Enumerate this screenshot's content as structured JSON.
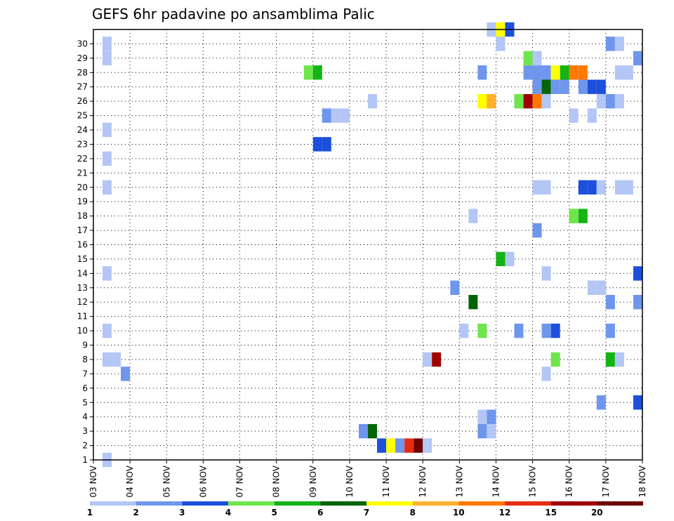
{
  "chart_data": {
    "type": "heatmap",
    "title": "GEFS 6hr padavine po ansamblima Palic",
    "x_ticks": [
      "03 NOV",
      "04 NOV",
      "05 NOV",
      "06 NOV",
      "07 NOV",
      "08 NOV",
      "09 NOV",
      "10 NOV",
      "11 NOV",
      "12 NOV",
      "13 NOV",
      "14 NOV",
      "15 NOV",
      "16 NOV",
      "17 NOV",
      "18 NOV"
    ],
    "y_ticks": [
      "1",
      "2",
      "3",
      "4",
      "5",
      "6",
      "7",
      "8",
      "9",
      "10",
      "11",
      "12",
      "13",
      "14",
      "15",
      "16",
      "17",
      "18",
      "19",
      "20",
      "21",
      "22",
      "23",
      "24",
      "25",
      "26",
      "27",
      "28",
      "29",
      "30"
    ],
    "ylim": [
      0,
      30
    ],
    "grid": true,
    "color_scale": {
      "colors": [
        "#b3c6f5",
        "#6e96ec",
        "#1c4fdc",
        "#6ee64b",
        "#14b414",
        "#056405",
        "#ffff00",
        "#ffb02e",
        "#ff7800",
        "#e62d14",
        "#a00000",
        "#6e0000"
      ],
      "labels": [
        "1",
        "2",
        "3",
        "4",
        "5",
        "6",
        "7",
        "8",
        "10",
        "12",
        "15",
        "20"
      ]
    },
    "cells": [
      [
        0.25,
        0,
        1
      ],
      [
        0.25,
        7,
        1
      ],
      [
        0.5,
        7,
        1
      ],
      [
        0.75,
        6,
        2
      ],
      [
        0.25,
        9,
        1
      ],
      [
        0.25,
        13,
        1
      ],
      [
        0.25,
        19,
        1
      ],
      [
        0.25,
        21,
        1
      ],
      [
        0.25,
        23,
        1
      ],
      [
        0.25,
        28,
        1
      ],
      [
        0.25,
        29,
        1
      ],
      [
        5.75,
        27,
        4
      ],
      [
        6.0,
        27,
        5
      ],
      [
        6.0,
        22,
        3
      ],
      [
        6.25,
        22,
        3
      ],
      [
        6.25,
        24,
        2
      ],
      [
        6.5,
        24,
        1
      ],
      [
        6.75,
        24,
        1
      ],
      [
        7.5,
        25,
        1
      ],
      [
        7.25,
        2,
        2
      ],
      [
        7.5,
        2,
        6
      ],
      [
        7.75,
        1,
        3
      ],
      [
        8.0,
        1,
        7
      ],
      [
        8.25,
        1,
        2
      ],
      [
        8.5,
        1,
        10
      ],
      [
        8.75,
        1,
        12
      ],
      [
        9.0,
        1,
        1
      ],
      [
        9.0,
        7,
        1
      ],
      [
        9.25,
        7,
        11
      ],
      [
        9.75,
        12,
        2
      ],
      [
        10.0,
        9,
        1
      ],
      [
        10.25,
        11,
        6
      ],
      [
        10.25,
        17,
        1
      ],
      [
        10.5,
        2,
        2
      ],
      [
        10.5,
        3,
        1
      ],
      [
        10.75,
        2,
        1
      ],
      [
        10.75,
        3,
        2
      ],
      [
        10.5,
        9,
        4
      ],
      [
        10.5,
        27,
        2
      ],
      [
        10.5,
        25,
        7
      ],
      [
        10.75,
        25,
        8
      ],
      [
        11.0,
        14,
        5
      ],
      [
        11.25,
        14,
        1
      ],
      [
        11.0,
        29,
        1
      ],
      [
        11.0,
        30,
        7
      ],
      [
        11.25,
        30,
        3
      ],
      [
        10.75,
        30,
        1
      ],
      [
        11.5,
        9,
        2
      ],
      [
        11.5,
        25,
        4
      ],
      [
        11.75,
        25,
        11
      ],
      [
        11.75,
        27,
        2
      ],
      [
        11.75,
        28,
        4
      ],
      [
        12.0,
        28,
        1
      ],
      [
        12.0,
        27,
        2
      ],
      [
        12.0,
        26,
        2
      ],
      [
        12.0,
        25,
        9
      ],
      [
        12.0,
        16,
        2
      ],
      [
        12.0,
        19,
        1
      ],
      [
        12.25,
        27,
        2
      ],
      [
        12.25,
        26,
        6
      ],
      [
        12.25,
        25,
        1
      ],
      [
        12.25,
        19,
        1
      ],
      [
        12.25,
        13,
        1
      ],
      [
        12.25,
        9,
        2
      ],
      [
        12.25,
        6,
        1
      ],
      [
        12.5,
        27,
        7
      ],
      [
        12.5,
        26,
        2
      ],
      [
        12.5,
        9,
        3
      ],
      [
        12.5,
        7,
        4
      ],
      [
        12.75,
        27,
        5
      ],
      [
        12.75,
        26,
        2
      ],
      [
        13.0,
        27,
        9
      ],
      [
        13.0,
        24,
        1
      ],
      [
        13.0,
        17,
        4
      ],
      [
        13.25,
        27,
        9
      ],
      [
        13.25,
        17,
        5
      ],
      [
        13.25,
        26,
        2
      ],
      [
        13.25,
        19,
        3
      ],
      [
        13.5,
        19,
        3
      ],
      [
        13.5,
        26,
        3
      ],
      [
        13.75,
        26,
        3
      ],
      [
        13.75,
        19,
        1
      ],
      [
        13.5,
        24,
        1
      ],
      [
        13.5,
        12,
        1
      ],
      [
        13.75,
        12,
        1
      ],
      [
        13.75,
        25,
        1
      ],
      [
        13.75,
        4,
        2
      ],
      [
        14.0,
        25,
        2
      ],
      [
        14.0,
        29,
        2
      ],
      [
        14.0,
        11,
        2
      ],
      [
        14.0,
        9,
        2
      ],
      [
        14.0,
        7,
        5
      ],
      [
        14.25,
        7,
        1
      ],
      [
        14.25,
        25,
        1
      ],
      [
        14.25,
        29,
        1
      ],
      [
        14.25,
        27,
        1
      ],
      [
        14.5,
        27,
        1
      ],
      [
        14.25,
        19,
        1
      ],
      [
        14.5,
        19,
        1
      ],
      [
        14.75,
        28,
        2
      ],
      [
        14.75,
        13,
        3
      ],
      [
        14.75,
        11,
        2
      ],
      [
        14.75,
        4,
        3
      ]
    ]
  }
}
